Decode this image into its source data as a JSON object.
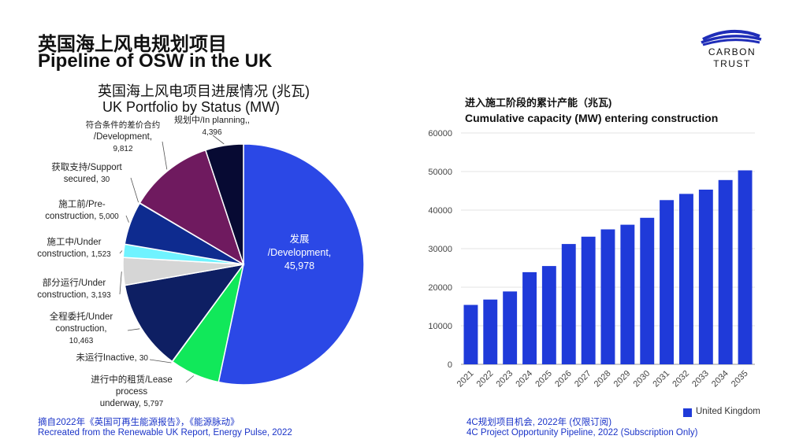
{
  "header": {
    "title_cn": "英国海上风电规划项目",
    "title_en": "Pipeline of OSW in the UK",
    "logo_line1": "CARBON",
    "logo_line2": "TRUST"
  },
  "pie": {
    "title_cn": "英国海上风电项目进展情况 (兆瓦)",
    "title_en": "UK Portfolio by Status (MW)",
    "labels": [
      {
        "lines": [
          "发展",
          "/Development,"
        ],
        "value": "45,978"
      },
      {
        "lines": [
          "进行中的租赁/Lease",
          "process",
          "underway,"
        ],
        "value": "5,797"
      },
      {
        "lines": [
          "未运行Inactive,"
        ],
        "value": "30"
      },
      {
        "lines": [
          "全程委托/Under",
          "construction,"
        ],
        "value": "10,463"
      },
      {
        "lines": [
          "部分运行/Under",
          "construction,"
        ],
        "value": "3,193"
      },
      {
        "lines": [
          "施工中/Under",
          "construction,"
        ],
        "value": "1,523"
      },
      {
        "lines": [
          "施工前/Pre-",
          "construction,"
        ],
        "value": "5,000"
      },
      {
        "lines": [
          "获取支持/Support",
          "secured,"
        ],
        "value": "30"
      },
      {
        "lines": [
          "符合条件的差价合约",
          "/Development,"
        ],
        "value": "9,812"
      },
      {
        "lines": [
          "规划中/In planning,,"
        ],
        "value": "4,396"
      }
    ]
  },
  "bar": {
    "title_cn": "进入施工阶段的累计产能（兆瓦)",
    "title_en": "Cumulative capacity (MW) entering construction",
    "legend": "United Kingdom"
  },
  "sources": {
    "left_cn": "摘自2022年《英国可再生能源报告》，《能源脉动》",
    "left_en": "Recreated from the Renewable UK Report, Energy Pulse, 2022",
    "right_cn": "4C规划项目机会, 2022年 (仅限订阅)",
    "right_en": "4C Project Opportunity Pipeline, 2022 (Subscription Only)"
  },
  "chart_data": [
    {
      "type": "pie",
      "title": "英国海上风电项目进展情况 (兆瓦) UK Portfolio by Status (MW)",
      "categories": [
        "Development",
        "Lease process underway",
        "Inactive",
        "Under construction (full)",
        "Under construction (partial operation)",
        "Under construction",
        "Pre-construction",
        "Support secured",
        "CfD eligible / Development",
        "In planning"
      ],
      "values": [
        45978,
        5797,
        30,
        10463,
        3193,
        1523,
        5000,
        30,
        9812,
        4396
      ],
      "colors": [
        "#2b48e6",
        "#11e85a",
        "#0b1552",
        "#0e1f63",
        "#d6d6d6",
        "#6ff3ff",
        "#0e2b8f",
        "#0e2b8f",
        "#6f1a5f",
        "#070a33"
      ]
    },
    {
      "type": "bar",
      "title": "Cumulative capacity (MW) entering construction",
      "categories": [
        "2021",
        "2022",
        "2023",
        "2024",
        "2025",
        "2026",
        "2027",
        "2028",
        "2029",
        "2030",
        "2031",
        "2032",
        "2033",
        "2034",
        "2035"
      ],
      "series": [
        {
          "name": "United Kingdom",
          "values": [
            15400,
            16800,
            18900,
            23900,
            25500,
            31200,
            33100,
            35000,
            36200,
            38000,
            42600,
            44200,
            45300,
            47800,
            50300
          ],
          "color": "#1f3ad9"
        }
      ],
      "ylim": [
        0,
        60000
      ],
      "yticks": [
        "0",
        "10000",
        "20000",
        "30000",
        "40000",
        "50000",
        "60000"
      ],
      "grid": true,
      "legend": "bottom-right"
    }
  ]
}
